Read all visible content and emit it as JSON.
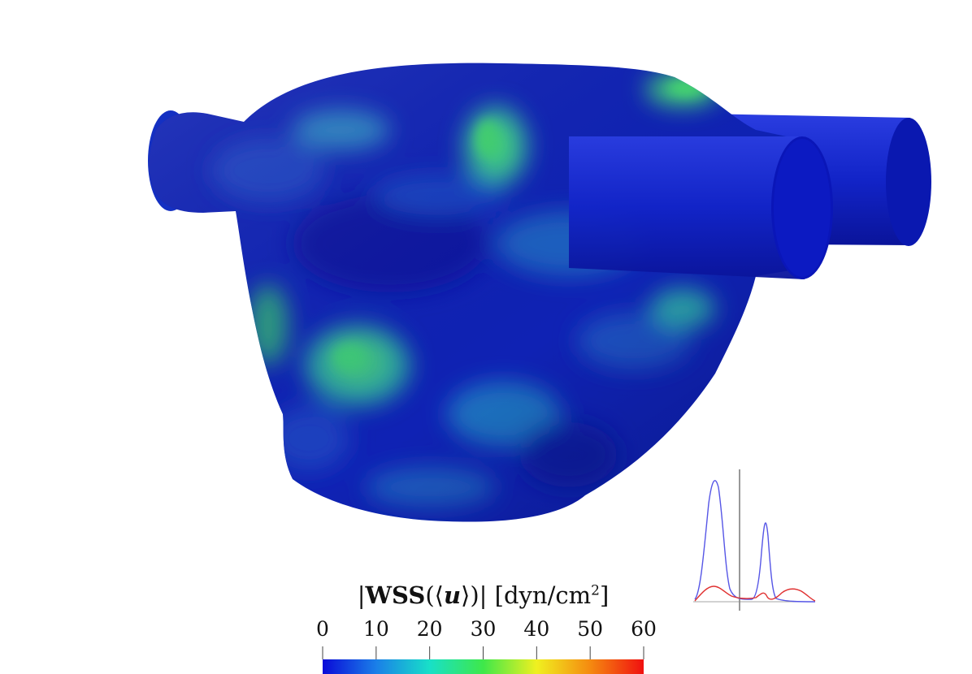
{
  "colorbar": {
    "title_prefix": "|",
    "title_wss": "WSS",
    "title_open": "(⟨",
    "title_u": "u",
    "title_close": "⟩)|",
    "title_units": " [dyn/cm",
    "title_exp": "2",
    "title_end": "]",
    "ticks": [
      "0",
      "10",
      "20",
      "30",
      "40",
      "50",
      "60"
    ],
    "colormap": [
      "#0a0ad8",
      "#1a7fe8",
      "#18e0c8",
      "#3ee84a",
      "#f0f020",
      "#f58a10",
      "#f01010"
    ]
  },
  "inset_plot": {
    "series": [
      {
        "color": "#5656e6"
      },
      {
        "color": "#e03030"
      }
    ]
  },
  "surface": {
    "colors": [
      "#0a1ba8",
      "#1230c0",
      "#1f6fc0",
      "#2ca0a0",
      "#3fd27a"
    ]
  }
}
